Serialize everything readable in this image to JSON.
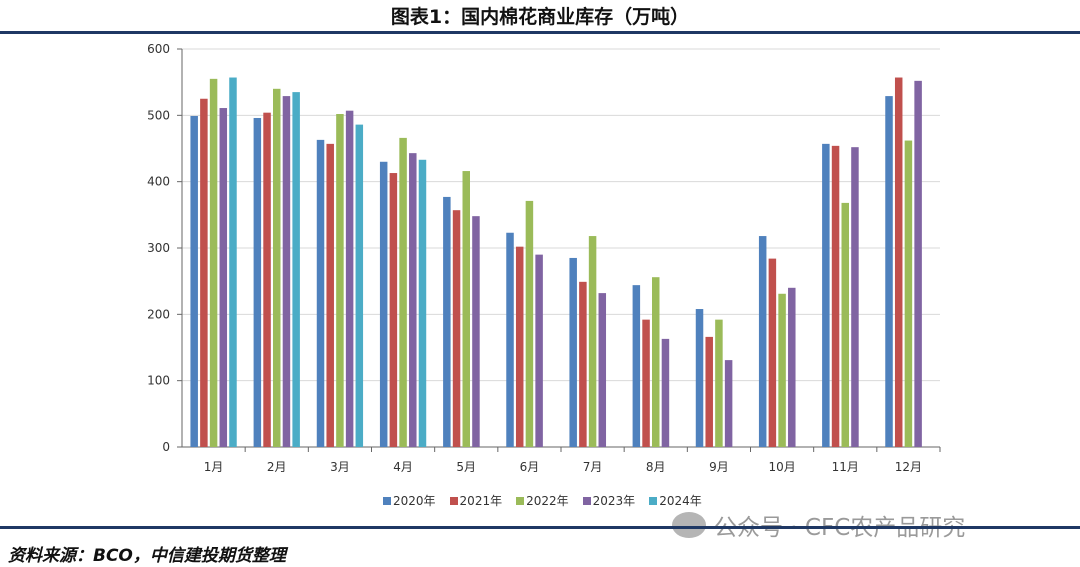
{
  "title": "图表1：国内棉花商业库存（万吨）",
  "source": "资料来源：BCO，中信建投期货整理",
  "watermark": "公众号 · CFC农产品研究",
  "chart_data": {
    "type": "bar",
    "title": "图表1：国内棉花商业库存（万吨）",
    "xlabel": "",
    "ylabel": "",
    "ylim": [
      0,
      600
    ],
    "yticks": [
      "0",
      "100",
      "200",
      "300",
      "400",
      "500",
      "600"
    ],
    "grid": true,
    "legend_position": "bottom",
    "categories": [
      "1月",
      "2月",
      "3月",
      "4月",
      "5月",
      "6月",
      "7月",
      "8月",
      "9月",
      "10月",
      "11月",
      "12月"
    ],
    "series": [
      {
        "name": "2020年",
        "color": "#4f81bd",
        "values": [
          499,
          496,
          463,
          430,
          377,
          323,
          285,
          244,
          208,
          318,
          457,
          529
        ]
      },
      {
        "name": "2021年",
        "color": "#c0504d",
        "values": [
          525,
          504,
          457,
          413,
          357,
          302,
          249,
          192,
          166,
          284,
          454,
          557
        ]
      },
      {
        "name": "2022年",
        "color": "#9bbb59",
        "values": [
          555,
          540,
          502,
          466,
          416,
          371,
          318,
          256,
          192,
          231,
          368,
          462
        ]
      },
      {
        "name": "2023年",
        "color": "#8064a2",
        "values": [
          511,
          529,
          507,
          443,
          348,
          290,
          232,
          163,
          131,
          240,
          452,
          552
        ]
      },
      {
        "name": "2024年",
        "color": "#4bacc6",
        "values": [
          557,
          535,
          486,
          433,
          null,
          null,
          null,
          null,
          null,
          null,
          null,
          null
        ]
      }
    ]
  }
}
